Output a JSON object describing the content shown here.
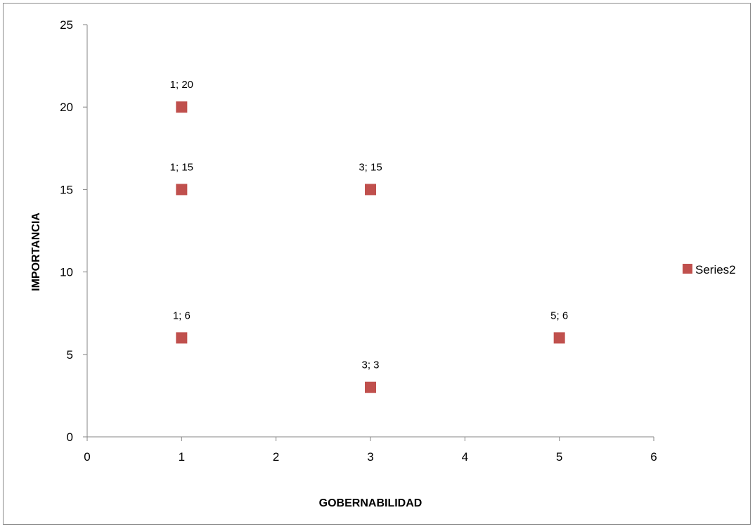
{
  "chart_data": {
    "type": "scatter",
    "title": "",
    "xlabel": "GOBERNABILIDAD",
    "ylabel": "IMPORTANCIA",
    "xlim": [
      0,
      6
    ],
    "ylim": [
      0,
      25
    ],
    "x_ticks": [
      "0",
      "1",
      "2",
      "3",
      "4",
      "5",
      "6"
    ],
    "y_ticks": [
      "0",
      "5",
      "10",
      "15",
      "20",
      "25"
    ],
    "grid": false,
    "legend_position": "right",
    "marker": "square",
    "series": [
      {
        "name": "Series2",
        "color": "#c0504d",
        "points": [
          {
            "x": 1,
            "y": 20,
            "label": "1; 20"
          },
          {
            "x": 1,
            "y": 15,
            "label": "1; 15"
          },
          {
            "x": 3,
            "y": 15,
            "label": "3; 15"
          },
          {
            "x": 1,
            "y": 6,
            "label": "1; 6"
          },
          {
            "x": 5,
            "y": 6,
            "label": "5; 6"
          },
          {
            "x": 3,
            "y": 3,
            "label": "3; 3"
          }
        ]
      }
    ]
  }
}
